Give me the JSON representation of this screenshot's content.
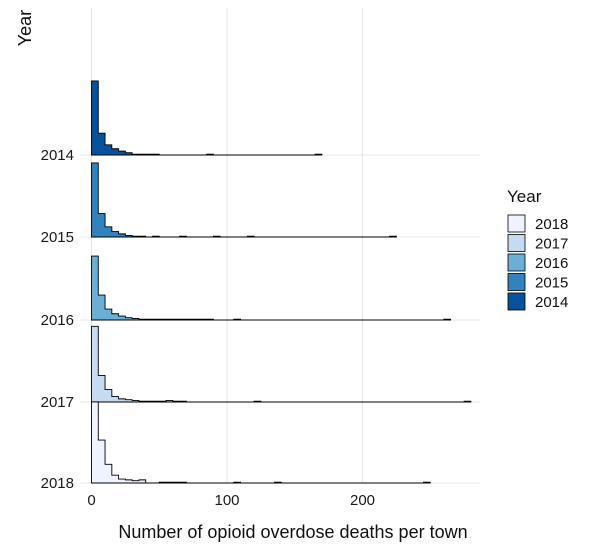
{
  "chart_data": {
    "type": "ridgeline-histogram",
    "xlabel": "Number of opioid overdose deaths per town",
    "ylabel": "Year",
    "xlim": [
      0,
      280
    ],
    "x_ticks": [
      0,
      100,
      200
    ],
    "bin_width": 5,
    "rows": [
      "2014",
      "2015",
      "2016",
      "2017",
      "2018"
    ],
    "legend": {
      "title": "Year",
      "position": "right",
      "entries": [
        "2018",
        "2017",
        "2016",
        "2015",
        "2014"
      ]
    },
    "series": [
      {
        "name": "2014",
        "color": "#08519c",
        "counts": [
          95,
          28,
          13,
          8,
          5,
          3,
          1,
          1,
          1,
          1,
          0,
          0,
          0,
          0,
          0,
          0,
          0,
          1,
          0,
          0,
          0,
          0,
          0,
          0,
          0,
          0,
          0,
          0,
          0,
          0,
          0,
          0,
          0,
          1
        ]
      },
      {
        "name": "2015",
        "color": "#3182bd",
        "counts": [
          95,
          30,
          13,
          7,
          4,
          2,
          1,
          1,
          0,
          1,
          0,
          0,
          0,
          1,
          0,
          0,
          0,
          0,
          1,
          0,
          0,
          0,
          0,
          1,
          0,
          0,
          0,
          0,
          0,
          0,
          0,
          0,
          0,
          0,
          0,
          0,
          0,
          0,
          0,
          0,
          0,
          0,
          0,
          0,
          1
        ]
      },
      {
        "name": "2016",
        "color": "#6baed6",
        "counts": [
          82,
          32,
          14,
          8,
          5,
          3,
          2,
          1,
          1,
          1,
          1,
          1,
          1,
          1,
          1,
          1,
          1,
          1,
          0,
          0,
          0,
          1,
          0,
          0,
          0,
          0,
          0,
          0,
          0,
          0,
          0,
          0,
          0,
          0,
          0,
          0,
          0,
          0,
          0,
          0,
          0,
          0,
          0,
          0,
          0,
          0,
          0,
          0,
          0,
          0,
          0,
          0,
          1
        ]
      },
      {
        "name": "2017",
        "color": "#c6dbef",
        "counts": [
          97,
          34,
          16,
          7,
          4,
          3,
          2,
          1,
          1,
          1,
          1,
          2,
          1,
          1,
          0,
          0,
          0,
          0,
          0,
          0,
          0,
          0,
          0,
          0,
          1,
          0,
          0,
          0,
          0,
          0,
          0,
          0,
          0,
          0,
          0,
          0,
          0,
          0,
          0,
          0,
          0,
          0,
          0,
          0,
          0,
          0,
          0,
          0,
          0,
          0,
          0,
          0,
          0,
          0,
          0,
          1
        ]
      },
      {
        "name": "2018",
        "color": "#eff3ff",
        "counts": [
          104,
          55,
          24,
          10,
          5,
          4,
          3,
          4,
          0,
          0,
          1,
          1,
          1,
          1,
          0,
          0,
          0,
          0,
          0,
          0,
          0,
          1,
          0,
          0,
          0,
          0,
          0,
          1,
          0,
          0,
          0,
          0,
          0,
          0,
          0,
          0,
          0,
          0,
          0,
          0,
          0,
          0,
          0,
          0,
          0,
          0,
          0,
          0,
          0,
          1
        ]
      }
    ]
  }
}
